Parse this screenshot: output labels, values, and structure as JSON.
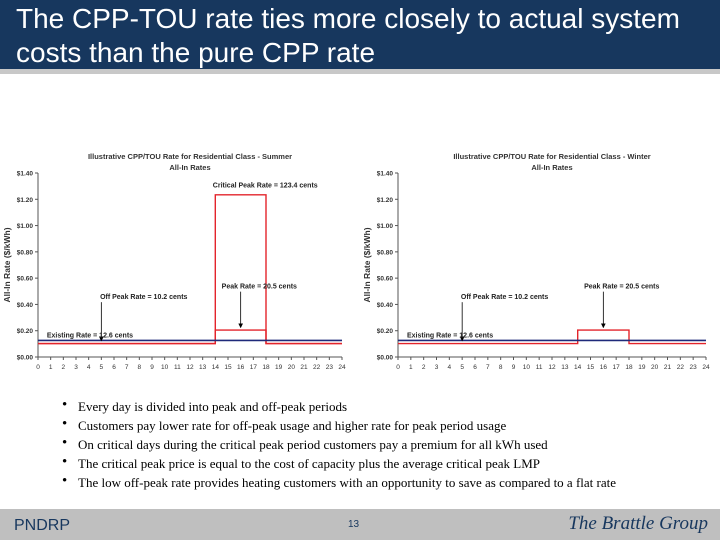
{
  "slide": {
    "title": "The CPP-TOU rate ties more closely to actual system costs than the pure CPP rate"
  },
  "chart_data": [
    {
      "type": "line",
      "title": "Illustrative CPP/TOU Rate for Residential Class - Summer",
      "subtitle": "All-In Rates",
      "xlabel": "",
      "ylabel": "All-In Rate ($/kWh)",
      "xlim": [
        0,
        24
      ],
      "ylim": [
        0,
        1.4
      ],
      "yticks": [
        "$0.00",
        "$0.20",
        "$0.40",
        "$0.60",
        "$0.80",
        "$1.00",
        "$1.20",
        "$1.40"
      ],
      "xticks": [
        "0",
        "1",
        "2",
        "3",
        "4",
        "5",
        "6",
        "7",
        "8",
        "9",
        "10",
        "11",
        "12",
        "13",
        "14",
        "15",
        "16",
        "17",
        "18",
        "19",
        "20",
        "21",
        "22",
        "23",
        "24"
      ],
      "grid": false,
      "series": [
        {
          "key": "critical",
          "color": "#e3242b",
          "x": [
            0,
            14,
            14,
            18,
            18,
            24
          ],
          "y": [
            0.102,
            0.102,
            1.234,
            1.234,
            0.102,
            0.102
          ]
        },
        {
          "key": "peak",
          "color": "#e3242b",
          "x": [
            0,
            14,
            14,
            18,
            18,
            24
          ],
          "y": [
            0.102,
            0.102,
            0.205,
            0.205,
            0.102,
            0.102
          ]
        },
        {
          "key": "existing",
          "color": "#1f2a7a",
          "x": [
            0,
            24
          ],
          "y": [
            0.126,
            0.126
          ]
        }
      ],
      "annotations": [
        {
          "text": "Critical Peak Rate = 123.4 cents",
          "x": 13.8,
          "y": 1.29,
          "arrow": false
        },
        {
          "text": "Peak Rate = 20.5 cents",
          "x": 14.5,
          "y": 0.52,
          "arrow": true,
          "ax": 16.0,
          "ay": 0.21
        },
        {
          "text": "Off Peak Rate = 10.2 cents",
          "x": 4.9,
          "y": 0.44,
          "arrow": true,
          "ax": 5.0,
          "ay": 0.11
        },
        {
          "text": "Existing Rate = 12.6 cents",
          "x": 0.7,
          "y": 0.15,
          "arrow": false
        }
      ]
    },
    {
      "type": "line",
      "title": "Illustrative CPP/TOU Rate for Residential Class - Winter",
      "subtitle": "All-In Rates",
      "xlabel": "",
      "ylabel": "All-In Rate ($/kWh)",
      "xlim": [
        0,
        24
      ],
      "ylim": [
        0,
        1.4
      ],
      "yticks": [
        "$0.00",
        "$0.20",
        "$0.40",
        "$0.60",
        "$0.80",
        "$1.00",
        "$1.20",
        "$1.40"
      ],
      "xticks": [
        "0",
        "1",
        "2",
        "3",
        "4",
        "5",
        "6",
        "7",
        "8",
        "9",
        "10",
        "11",
        "12",
        "13",
        "14",
        "15",
        "16",
        "17",
        "18",
        "19",
        "20",
        "21",
        "22",
        "23",
        "24"
      ],
      "grid": false,
      "series": [
        {
          "key": "peak",
          "color": "#e3242b",
          "x": [
            0,
            14,
            14,
            18,
            18,
            24
          ],
          "y": [
            0.102,
            0.102,
            0.205,
            0.205,
            0.102,
            0.102
          ]
        },
        {
          "key": "existing",
          "color": "#1f2a7a",
          "x": [
            0,
            24
          ],
          "y": [
            0.126,
            0.126
          ]
        }
      ],
      "annotations": [
        {
          "text": "Peak Rate = 20.5 cents",
          "x": 14.5,
          "y": 0.52,
          "arrow": true,
          "ax": 16.0,
          "ay": 0.21
        },
        {
          "text": "Off Peak Rate = 10.2 cents",
          "x": 4.9,
          "y": 0.44,
          "arrow": true,
          "ax": 5.0,
          "ay": 0.11
        },
        {
          "text": "Existing Rate = 12.6 cents",
          "x": 0.7,
          "y": 0.15,
          "arrow": false
        }
      ]
    }
  ],
  "bullets": [
    "Every day is divided into peak and off-peak periods",
    "Customers pay lower rate for off-peak usage and higher rate for peak period usage",
    "On critical days during the critical peak period customers pay a premium for all kWh used",
    "The critical peak price is equal to the cost of capacity plus the average critical peak LMP",
    "The low off-peak rate provides heating customers with an opportunity to save as compared to a flat rate"
  ],
  "footer": {
    "left": "PNDRP",
    "page": "13",
    "logo": "The Brattle Group"
  },
  "colors": {
    "title_bar": "#17375e",
    "footer_bar": "#bfbfbf",
    "rate_line": "#e3242b",
    "existing_line": "#1f2a7a"
  }
}
